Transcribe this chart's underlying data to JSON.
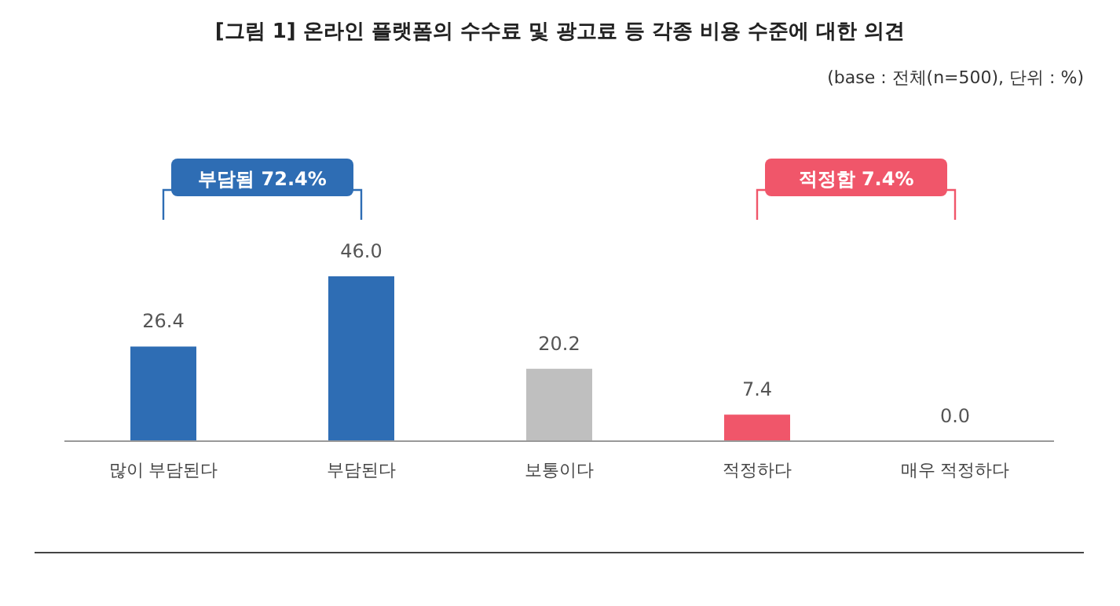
{
  "chart_data": {
    "type": "bar",
    "title": "[그림 1] 온라인 플랫폼의 수수료 및 광고료 등 각종 비용 수준에 대한 의견",
    "subtitle": "(base : 전체(n=500), 단위 : %)",
    "categories": [
      "많이 부담된다",
      "부담된다",
      "보통이다",
      "적정하다",
      "매우 적정하다"
    ],
    "values": [
      26.4,
      46.0,
      20.2,
      7.4,
      0.0
    ],
    "colors": [
      "#2e6db4",
      "#2e6db4",
      "#bfbfbf",
      "#f0566a",
      "#bfbfbf"
    ],
    "value_labels": [
      "26.4",
      "46.0",
      "20.2",
      "7.4",
      "0.0"
    ],
    "annotations": [
      "부담됨 72.4%",
      "적정함 7.4%"
    ]
  }
}
